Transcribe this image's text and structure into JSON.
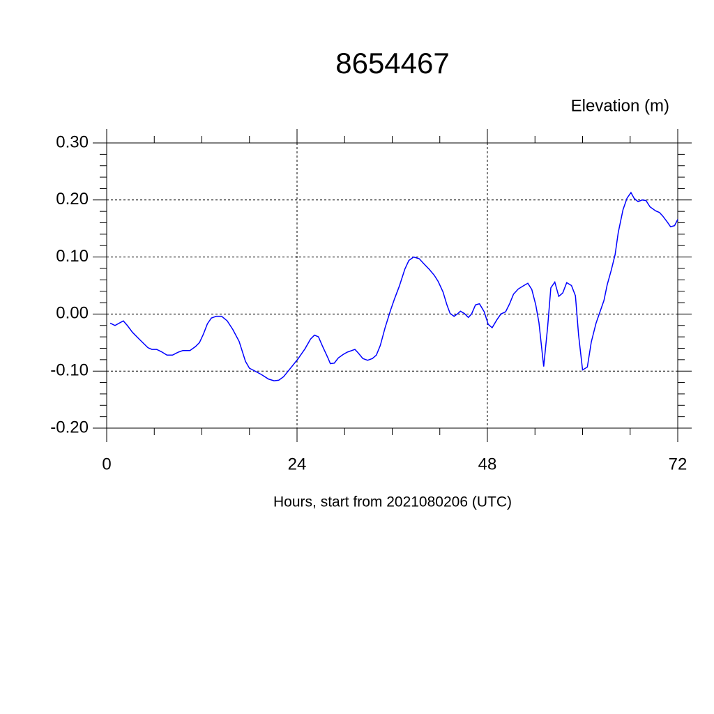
{
  "chart_data": {
    "type": "line",
    "title": "8654467",
    "ylabel": "Elevation (m)",
    "xlabel": "Hours, start from 2021080206 (UTC)",
    "xlim": [
      0,
      72
    ],
    "xticks": [
      0,
      24,
      48,
      72
    ],
    "xminorticks": [
      6,
      12,
      18,
      30,
      36,
      42,
      54,
      60,
      66
    ],
    "ylim": [
      -0.2,
      0.3
    ],
    "yticks": [
      {
        "value": -0.2,
        "label": "-0.20"
      },
      {
        "value": -0.1,
        "label": "-0.10"
      },
      {
        "value": 0,
        "label": "0.00"
      },
      {
        "value": 0.1,
        "label": "0.10"
      },
      {
        "value": 0.2,
        "label": "0.20"
      },
      {
        "value": 0.3,
        "label": "0.30"
      }
    ],
    "yminorticks": [
      -0.18,
      -0.16,
      -0.14,
      -0.12,
      -0.08,
      -0.06,
      -0.04,
      -0.02,
      0.02,
      0.04,
      0.06,
      0.08,
      0.12,
      0.14,
      0.16,
      0.18,
      0.22,
      0.24,
      0.26,
      0.28
    ],
    "grid": true,
    "x": [
      0.44,
      1.05,
      2.1,
      2.6,
      3.25,
      4.1,
      5.2,
      5.7,
      6.3,
      6.9,
      7.6,
      8.3,
      9.0,
      9.6,
      10.5,
      11.2,
      11.7,
      12.2,
      12.7,
      13.2,
      13.8,
      14.5,
      15.2,
      15.9,
      16.7,
      17.5,
      18.0,
      18.7,
      19.5,
      20.4,
      21.1,
      21.7,
      22.3,
      23.0,
      24.1,
      25.0,
      25.7,
      26.2,
      26.7,
      27.2,
      27.9,
      28.2,
      28.7,
      29.2,
      29.8,
      30.3,
      30.9,
      31.3,
      31.7,
      32.3,
      32.9,
      33.5,
      34.0,
      34.5,
      35.1,
      35.8,
      36.3,
      36.9,
      37.6,
      38.1,
      38.7,
      39.4,
      40.0,
      40.7,
      41.3,
      41.8,
      42.4,
      42.9,
      43.3,
      43.8,
      44.2,
      44.6,
      45.1,
      45.6,
      46.0,
      46.5,
      47.0,
      47.6,
      48.1,
      48.6,
      49.2,
      49.7,
      50.3,
      50.8,
      51.3,
      51.9,
      52.6,
      53.1,
      53.6,
      54.1,
      54.5,
      55.1,
      55.6,
      56.0,
      56.5,
      57.0,
      57.5,
      58.0,
      58.6,
      59.1,
      59.5,
      60.0,
      60.6,
      61.1,
      61.7,
      62.2,
      62.7,
      63.1,
      63.6,
      64.1,
      64.5,
      65.1,
      65.6,
      66.1,
      66.5,
      67.0,
      67.5,
      68.0,
      68.5,
      69.2,
      69.7,
      70.1,
      70.7,
      71.1,
      71.6,
      72.0
    ],
    "series": [
      {
        "name": "Elevation",
        "color": "#0000ff",
        "values": [
          -0.016,
          -0.02,
          -0.012,
          -0.02,
          -0.032,
          -0.044,
          -0.059,
          -0.062,
          -0.062,
          -0.066,
          -0.072,
          -0.072,
          -0.067,
          -0.064,
          -0.064,
          -0.057,
          -0.05,
          -0.035,
          -0.017,
          -0.007,
          -0.004,
          -0.004,
          -0.012,
          -0.027,
          -0.048,
          -0.083,
          -0.095,
          -0.1,
          -0.106,
          -0.114,
          -0.117,
          -0.116,
          -0.11,
          -0.098,
          -0.079,
          -0.061,
          -0.044,
          -0.037,
          -0.04,
          -0.056,
          -0.077,
          -0.087,
          -0.086,
          -0.077,
          -0.071,
          -0.067,
          -0.064,
          -0.062,
          -0.068,
          -0.078,
          -0.081,
          -0.078,
          -0.072,
          -0.055,
          -0.024,
          0.007,
          0.027,
          0.049,
          0.079,
          0.094,
          0.1,
          0.097,
          0.088,
          0.078,
          0.068,
          0.057,
          0.039,
          0.016,
          0.001,
          -0.004,
          0.0,
          0.005,
          0.001,
          -0.006,
          0.0,
          0.016,
          0.018,
          0.004,
          -0.018,
          -0.024,
          -0.01,
          0.0,
          0.004,
          0.018,
          0.035,
          0.044,
          0.05,
          0.054,
          0.043,
          0.016,
          -0.015,
          -0.092,
          -0.022,
          0.046,
          0.056,
          0.031,
          0.037,
          0.055,
          0.05,
          0.032,
          -0.037,
          -0.098,
          -0.093,
          -0.049,
          -0.016,
          0.004,
          0.024,
          0.051,
          0.076,
          0.104,
          0.143,
          0.183,
          0.203,
          0.213,
          0.203,
          0.197,
          0.2,
          0.199,
          0.188,
          0.181,
          0.178,
          0.172,
          0.161,
          0.153,
          0.155,
          0.166
        ]
      }
    ]
  }
}
